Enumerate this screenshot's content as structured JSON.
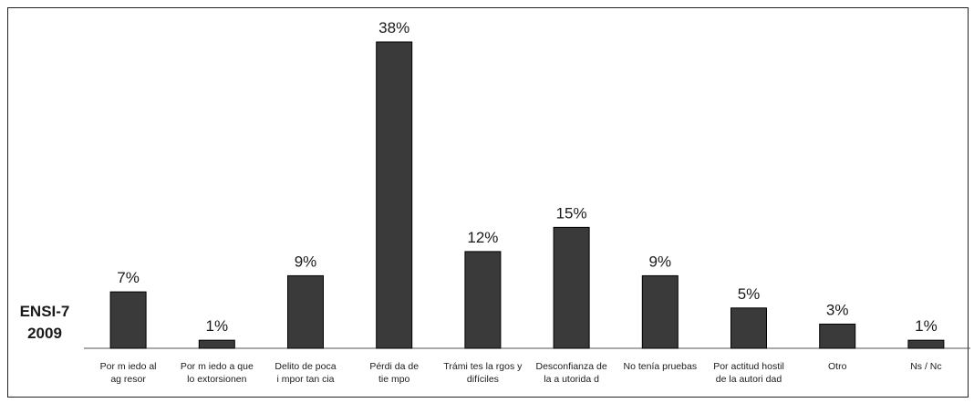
{
  "colors": {
    "bar": "#3a3a3a",
    "bar_outline": "#000000",
    "axis": "#555555",
    "text": "#1a1a1a"
  },
  "series_label": {
    "line1": "ENSI-7",
    "line2": "2009"
  },
  "chart_data": {
    "type": "bar",
    "title": "",
    "xlabel": "",
    "ylabel": "",
    "ylim": [
      0,
      38
    ],
    "grid": false,
    "categories": [
      [
        "Por m iedo al",
        "ag resor"
      ],
      [
        "Por m iedo a que",
        "lo extorsionen"
      ],
      [
        "Delito de poca",
        "i mpor tan cia"
      ],
      [
        "Pérdi da de",
        "tie mpo"
      ],
      [
        "Trámi tes la rgos y",
        "difíciles"
      ],
      [
        "Desconfianza de",
        "la a utorida d"
      ],
      [
        "No tenía pruebas"
      ],
      [
        "Por actitud hostil",
        "de la autori dad"
      ],
      [
        "Otro"
      ],
      [
        "Ns / Nc"
      ]
    ],
    "values": [
      7,
      1,
      9,
      38,
      12,
      15,
      9,
      5,
      3,
      1
    ],
    "value_labels": [
      "7%",
      "1%",
      "9%",
      "38%",
      "12%",
      "15%",
      "9%",
      "5%",
      "3%",
      "1%"
    ]
  }
}
